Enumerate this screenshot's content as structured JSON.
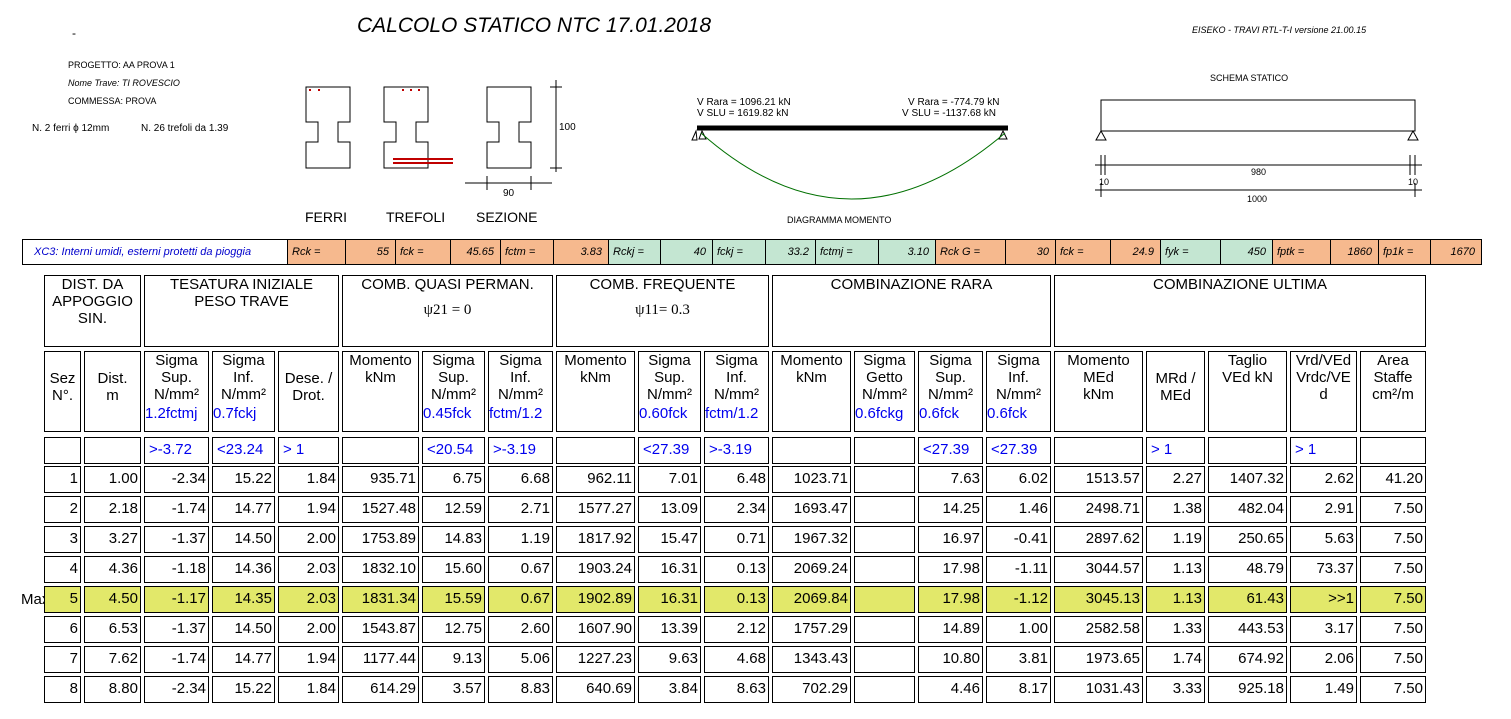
{
  "header": {
    "mark": "-",
    "title": "CALCOLO STATICO NTC 17.01.2018",
    "version": "EISEKO -  TRAVI RTL-T-I  versione  21.00.15"
  },
  "info": {
    "progetto": "PROGETTO: AA PROVA 1",
    "nome": "Nome Trave: TI ROVESCIO",
    "commessa": "COMMESSA: PROVA",
    "ferri": "N. 2 ferri ϕ 12mm",
    "trefoli": "N. 26 trefoli da 1.39"
  },
  "sections": {
    "labels": [
      "FERRI",
      "TREFOLI",
      "SEZIONE"
    ],
    "height": "100",
    "width": "90"
  },
  "diagram": {
    "left_rara": "V Rara = 1096.21 kN",
    "left_slu": "V SLU = 1619.82 kN",
    "right_rara": "V Rara = -774.79 kN",
    "right_slu": "V SLU = -1137.68 kN",
    "title": "DIAGRAMMA MOMENTO"
  },
  "schema": {
    "title": "SCHEMA STATICO",
    "left": "10",
    "span": "980",
    "right": "10",
    "total": "1000"
  },
  "params": {
    "exposure": "XC3: Interni umidi, esterni protetti da pioggia",
    "items": [
      {
        "label": "Rck =",
        "value": "55",
        "color": "#f6b98e"
      },
      {
        "label": "fck =",
        "value": "45.65",
        "color": "#f6b98e"
      },
      {
        "label": "fctm =",
        "value": "3.83",
        "color": "#f6b98e"
      },
      {
        "label": "Rckj =",
        "value": "40",
        "color": "#c4e6d2"
      },
      {
        "label": "fckj =",
        "value": "33.2",
        "color": "#c4e6d2"
      },
      {
        "label": "fctmj =",
        "value": "3.10",
        "color": "#c4e6d2"
      },
      {
        "label": "Rck G =",
        "value": "30",
        "color": "#f6b98e"
      },
      {
        "label": "fck =",
        "value": "24.9",
        "color": "#f6b98e"
      },
      {
        "label": "fyk =",
        "value": "450",
        "color": "#c4e6d2"
      },
      {
        "label": "fptk =",
        "value": "1860",
        "color": "#f6b98e"
      },
      {
        "label": "fp1k =",
        "value": "1670",
        "color": "#f6b98e"
      }
    ]
  },
  "table": {
    "groups": [
      {
        "title": "DIST. DA\nAPPOGGIO\nSIN.",
        "span": 2
      },
      {
        "title": "TESATURA INIZIALE\nPESO TRAVE",
        "span": 3
      },
      {
        "title": "COMB. QUASI PERMAN.",
        "sub": "ψ21 = 0",
        "span": 3
      },
      {
        "title": "COMB.   FREQUENTE",
        "sub": "ψ11= 0.3",
        "span": 3
      },
      {
        "title": "COMBINAZIONE  RARA",
        "span": 4
      },
      {
        "title": "COMBINAZIONE ULTIMA",
        "span": 5
      }
    ],
    "columns": [
      {
        "title": "Sez\nN°."
      },
      {
        "title": "Dist.\nm"
      },
      {
        "title": "Sigma\nSup.\nN/mm²",
        "sub": "1.2fctmj"
      },
      {
        "title": "Sigma\nInf.\nN/mm²",
        "sub": "0.7fckj"
      },
      {
        "title": "Dese. /\nDrot."
      },
      {
        "title": "Momento\nkNm"
      },
      {
        "title": "Sigma\nSup.\nN/mm²",
        "sub": "0.45fck"
      },
      {
        "title": "Sigma\nInf.\nN/mm²",
        "sub": "fctm/1.2"
      },
      {
        "title": "Momento\nkNm"
      },
      {
        "title": "Sigma\nSup.\nN/mm²",
        "sub": "0.60fck"
      },
      {
        "title": "Sigma\nInf.\nN/mm²",
        "sub": "fctm/1.2"
      },
      {
        "title": "Momento\nkNm"
      },
      {
        "title": "Sigma\nGetto\nN/mm²",
        "sub": "0.6fckg"
      },
      {
        "title": "Sigma\nSup.\nN/mm²",
        "sub": "0.6fck"
      },
      {
        "title": "Sigma\nInf.\nN/mm²",
        "sub": "0.6fck"
      },
      {
        "title": "Momento\nMEd\nkNm"
      },
      {
        "title": "MRd /\nMEd"
      },
      {
        "title": "Taglio\nVEd      kN"
      },
      {
        "title": "Vrd/VEd\nVrdc/VE\nd"
      },
      {
        "title": "Area\nStaffe\ncm²/m"
      }
    ],
    "limits": [
      null,
      null,
      ">-3.72",
      "<23.24",
      "> 1",
      null,
      "<20.54",
      ">-3.19",
      null,
      "<27.39",
      ">-3.19",
      null,
      null,
      "<27.39",
      "<27.39",
      null,
      "> 1",
      null,
      "> 1",
      null
    ],
    "rows": [
      {
        "cells": [
          "1",
          "1.00",
          "-2.34",
          "15.22",
          "1.84",
          "935.71",
          "6.75",
          "6.68",
          "962.11",
          "7.01",
          "6.48",
          "1023.71",
          null,
          "7.63",
          "6.02",
          "1513.57",
          "2.27",
          "1407.32",
          "2.62",
          "41.20"
        ]
      },
      {
        "cells": [
          "2",
          "2.18",
          "-1.74",
          "14.77",
          "1.94",
          "1527.48",
          "12.59",
          "2.71",
          "1577.27",
          "13.09",
          "2.34",
          "1693.47",
          null,
          "14.25",
          "1.46",
          "2498.71",
          "1.38",
          "482.04",
          "2.91",
          "7.50"
        ]
      },
      {
        "cells": [
          "3",
          "3.27",
          "-1.37",
          "14.50",
          "2.00",
          "1753.89",
          "14.83",
          "1.19",
          "1817.92",
          "15.47",
          "0.71",
          "1967.32",
          null,
          "16.97",
          "-0.41",
          "2897.62",
          "1.19",
          "250.65",
          "5.63",
          "7.50"
        ]
      },
      {
        "cells": [
          "4",
          "4.36",
          "-1.18",
          "14.36",
          "2.03",
          "1832.10",
          "15.60",
          "0.67",
          "1903.24",
          "16.31",
          "0.13",
          "2069.24",
          null,
          "17.98",
          "-1.11",
          "3044.57",
          "1.13",
          "48.79",
          "73.37",
          "7.50"
        ]
      },
      {
        "label": "Max",
        "cells": [
          "5",
          "4.50",
          "-1.17",
          "14.35",
          "2.03",
          "1831.34",
          "15.59",
          "0.67",
          "1902.89",
          "16.31",
          "0.13",
          "2069.84",
          null,
          "17.98",
          "-1.12",
          "3045.13",
          "1.13",
          "61.43",
          ">>1",
          "7.50"
        ]
      },
      {
        "cells": [
          "6",
          "6.53",
          "-1.37",
          "14.50",
          "2.00",
          "1543.87",
          "12.75",
          "2.60",
          "1607.90",
          "13.39",
          "2.12",
          "1757.29",
          null,
          "14.89",
          "1.00",
          "2582.58",
          "1.33",
          "443.53",
          "3.17",
          "7.50"
        ]
      },
      {
        "cells": [
          "7",
          "7.62",
          "-1.74",
          "14.77",
          "1.94",
          "1177.44",
          "9.13",
          "5.06",
          "1227.23",
          "9.63",
          "4.68",
          "1343.43",
          null,
          "10.80",
          "3.81",
          "1973.65",
          "1.74",
          "674.92",
          "2.06",
          "7.50"
        ]
      },
      {
        "cells": [
          "8",
          "8.80",
          "-2.34",
          "15.22",
          "1.84",
          "614.29",
          "3.57",
          "8.83",
          "640.69",
          "3.84",
          "8.63",
          "702.29",
          null,
          "4.46",
          "8.17",
          "1031.43",
          "3.33",
          "925.18",
          "1.49",
          "7.50"
        ]
      }
    ]
  }
}
